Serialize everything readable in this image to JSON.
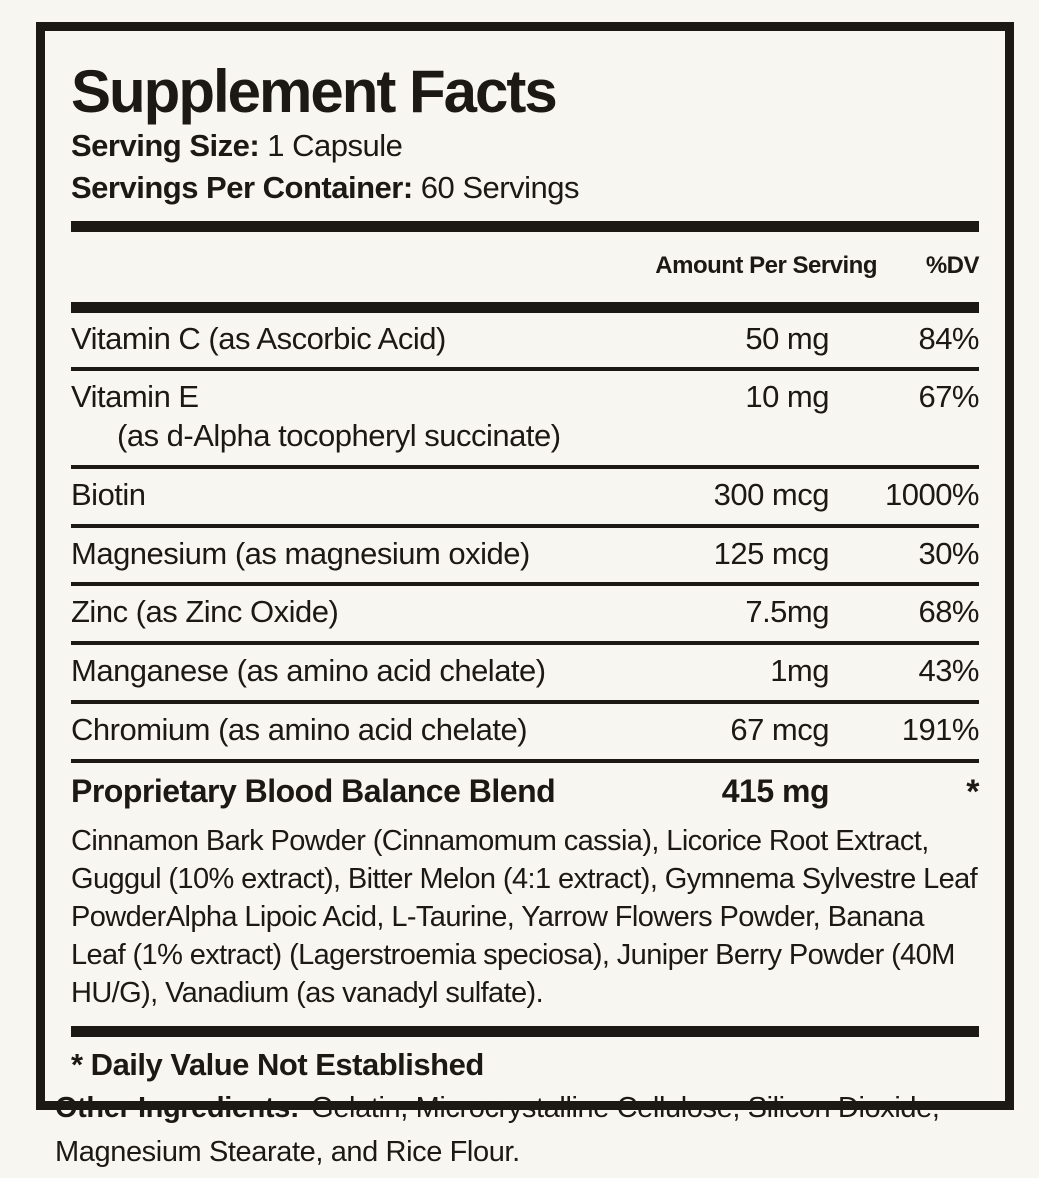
{
  "label": {
    "title": "Supplement Facts",
    "serving_size_label": "Serving Size:",
    "serving_size_value": " 1 Capsule",
    "servings_per_container_label": "Servings Per Container:",
    "servings_per_container_value": " 60 Servings",
    "columns": {
      "amount": "Amount Per Serving",
      "dv": "%DV"
    },
    "rows": [
      {
        "name": "Vitamin C (as Ascorbic Acid)",
        "amount": "50 mg",
        "dv": "84%"
      },
      {
        "name": "Vitamin E",
        "name_line2": "(as d-Alpha tocopheryl succinate)",
        "amount": "10 mg",
        "dv": "67%"
      },
      {
        "name": "Biotin",
        "amount": "300 mcg",
        "dv": "1000%"
      },
      {
        "name": "Magnesium (as magnesium oxide)",
        "amount": "125 mcg",
        "dv": "30%"
      },
      {
        "name": "Zinc (as Zinc Oxide)",
        "amount": "7.5mg",
        "dv": "68%"
      },
      {
        "name": "Manganese (as amino acid chelate)",
        "amount": "1mg",
        "dv": "43%"
      },
      {
        "name": "Chromium (as amino acid chelate)",
        "amount": "67 mcg",
        "dv": "191%"
      }
    ],
    "blend": {
      "name": "Proprietary Blood Balance Blend",
      "amount": "415 mg",
      "dv": "*",
      "description": "Cinnamon Bark Powder (Cinnamomum cassia), Licorice Root Extract, Guggul (10% extract), Bitter Melon (4:1 extract), Gymnema Sylvestre Leaf PowderAlpha Lipoic Acid, L-Taurine, Yarrow Flowers Powder, Banana Leaf (1% extract) (Lagerstroemia speciosa), Juniper Berry Powder (40M HU/G), Vanadium (as vanadyl sulfate)."
    },
    "footnote": "* Daily Value Not Established",
    "colors": {
      "ink": "#1c1813",
      "background": "#f8f6f1"
    }
  },
  "other_ingredients": {
    "label": "Other Ingredients:",
    "value": "Gelatin, Microcrystalline Cellulose, Silicon Dioxide, Magnesium Stearate, and Rice Flour."
  }
}
